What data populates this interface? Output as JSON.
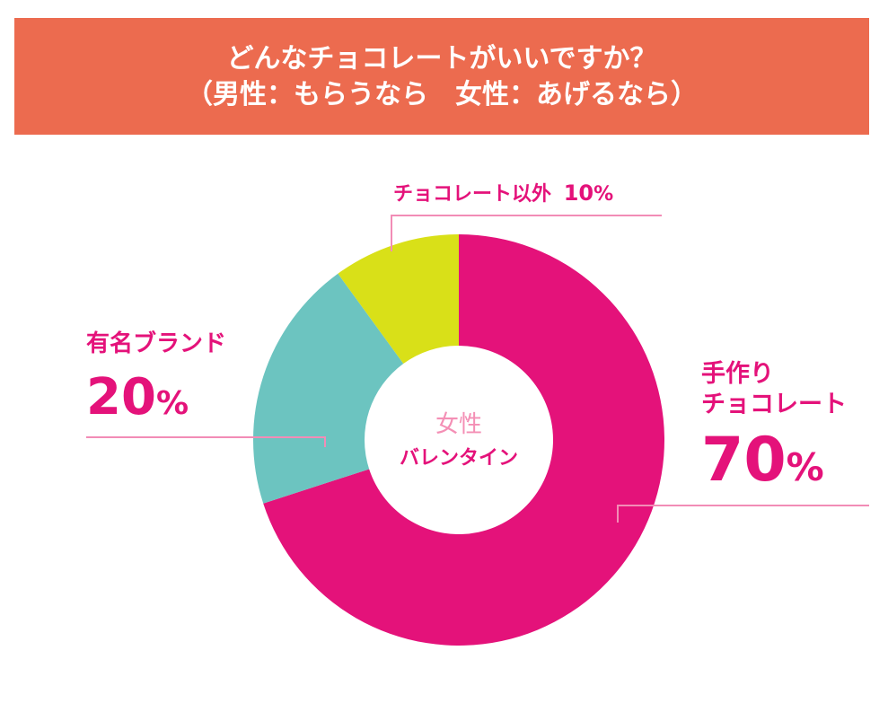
{
  "title": {
    "line1": "どんなチョコレートがいいですか？",
    "line2": "（男性：もらうなら　女性：あげるなら）"
  },
  "center": {
    "line1": "女性",
    "line2": "バレンタイン"
  },
  "colors": {
    "header": "#ec6b4f",
    "accent": "#e4127a",
    "leader": "#f28cb6"
  },
  "chart_data": {
    "type": "pie",
    "donut": true,
    "categories": [
      "手作りチョコレート",
      "有名ブランド",
      "チョコレート以外"
    ],
    "values": [
      70,
      20,
      10
    ],
    "colors": [
      "#e4127a",
      "#6cc4c0",
      "#d9e018"
    ],
    "unit": "%"
  },
  "labels": {
    "handmade": {
      "line1": "手作り",
      "line2": "チョコレート",
      "value": "70",
      "unit": "%"
    },
    "brand": {
      "line1": "有名ブランド",
      "value": "20",
      "unit": "%"
    },
    "other": {
      "text": "チョコレート以外",
      "value": "10",
      "unit": "%"
    }
  }
}
